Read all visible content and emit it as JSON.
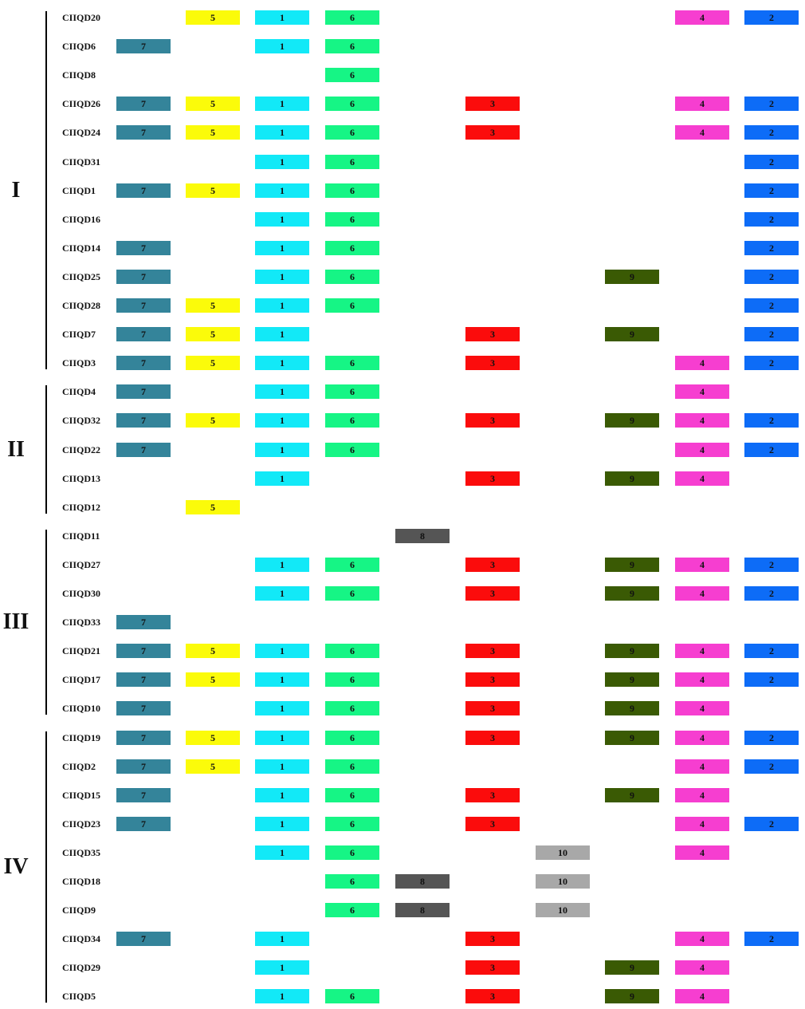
{
  "colors": {
    "1": "#12e9f7",
    "2": "#0d6cf7",
    "3": "#fb0c0c",
    "4": "#f63ed0",
    "5": "#fbfb0a",
    "6": "#16f585",
    "7": "#34849a",
    "8": "#555555",
    "9": "#3a5a04",
    "10": "#a8a8a8"
  },
  "groups": [
    {
      "label": "I",
      "start": 0,
      "end": 12
    },
    {
      "label": "II",
      "start": 13,
      "end": 17
    },
    {
      "label": "III",
      "start": 18,
      "end": 24
    },
    {
      "label": "IV",
      "start": 25,
      "end": 34
    }
  ],
  "rows": [
    {
      "name": "CIIQD20",
      "motifs": [
        5,
        1,
        6,
        4,
        2
      ]
    },
    {
      "name": "CIIQD6",
      "motifs": [
        7,
        1,
        6
      ]
    },
    {
      "name": "CIIQD8",
      "motifs": [
        6
      ]
    },
    {
      "name": "CIIQD26",
      "motifs": [
        7,
        5,
        1,
        6,
        3,
        4,
        2
      ]
    },
    {
      "name": "CIIQD24",
      "motifs": [
        7,
        5,
        1,
        6,
        3,
        4,
        2
      ]
    },
    {
      "name": "CIIQD31",
      "motifs": [
        1,
        6,
        2
      ]
    },
    {
      "name": "CIIQD1",
      "motifs": [
        7,
        5,
        1,
        6,
        2
      ]
    },
    {
      "name": "CIIQD16",
      "motifs": [
        1,
        6,
        2
      ]
    },
    {
      "name": "CIIQD14",
      "motifs": [
        7,
        1,
        6,
        2
      ]
    },
    {
      "name": "CIIQD25",
      "motifs": [
        7,
        1,
        6,
        9,
        2
      ]
    },
    {
      "name": "CIIQD28",
      "motifs": [
        7,
        5,
        1,
        6,
        2
      ]
    },
    {
      "name": "CIIQD7",
      "motifs": [
        7,
        5,
        1,
        3,
        9,
        2
      ]
    },
    {
      "name": "CIIQD3",
      "motifs": [
        7,
        5,
        1,
        6,
        3,
        4,
        2
      ]
    },
    {
      "name": "CIIQD4",
      "motifs": [
        7,
        1,
        6,
        4
      ]
    },
    {
      "name": "CIIQD32",
      "motifs": [
        7,
        5,
        1,
        6,
        3,
        9,
        4,
        2
      ]
    },
    {
      "name": "CIIQD22",
      "motifs": [
        7,
        1,
        6,
        4,
        2
      ]
    },
    {
      "name": "CIIQD13",
      "motifs": [
        1,
        3,
        9,
        4
      ]
    },
    {
      "name": "CIIQD12",
      "motifs": [
        5
      ]
    },
    {
      "name": "CIIQD11",
      "motifs": [
        8
      ]
    },
    {
      "name": "CIIQD27",
      "motifs": [
        1,
        6,
        3,
        9,
        4,
        2
      ]
    },
    {
      "name": "CIIQD30",
      "motifs": [
        1,
        6,
        3,
        9,
        4,
        2
      ]
    },
    {
      "name": "CIIQD33",
      "motifs": [
        7
      ]
    },
    {
      "name": "CIIQD21",
      "motifs": [
        7,
        5,
        1,
        6,
        3,
        9,
        4,
        2
      ]
    },
    {
      "name": "CIIQD17",
      "motifs": [
        7,
        5,
        1,
        6,
        3,
        9,
        4,
        2
      ]
    },
    {
      "name": "CIIQD10",
      "motifs": [
        7,
        1,
        6,
        3,
        9,
        4
      ]
    },
    {
      "name": "CIIQD19",
      "motifs": [
        7,
        5,
        1,
        6,
        3,
        9,
        4,
        2
      ]
    },
    {
      "name": "CIIQD2",
      "motifs": [
        7,
        5,
        1,
        6,
        4,
        2
      ]
    },
    {
      "name": "CIIQD15",
      "motifs": [
        7,
        1,
        6,
        3,
        9,
        4
      ]
    },
    {
      "name": "CIIQD23",
      "motifs": [
        7,
        1,
        6,
        3,
        4,
        2
      ]
    },
    {
      "name": "CIIQD35",
      "motifs": [
        1,
        6,
        10,
        4
      ]
    },
    {
      "name": "CIIQD18",
      "motifs": [
        6,
        8,
        10
      ]
    },
    {
      "name": "CIIQD9",
      "motifs": [
        6,
        8,
        10
      ]
    },
    {
      "name": "CIIQD34",
      "motifs": [
        7,
        1,
        3,
        4,
        2
      ]
    },
    {
      "name": "CIIQD29",
      "motifs": [
        1,
        3,
        9,
        4
      ]
    },
    {
      "name": "CIIQD5",
      "motifs": [
        1,
        6,
        3,
        9,
        4
      ]
    }
  ]
}
